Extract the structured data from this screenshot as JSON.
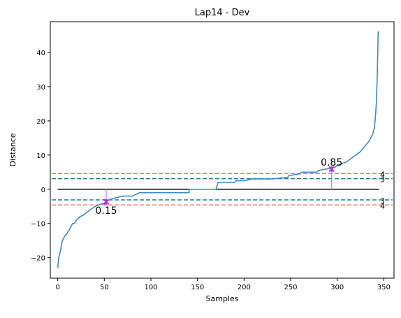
{
  "chart_data": {
    "type": "line",
    "title": "Lap14 - Dev",
    "xlabel": "Samples",
    "ylabel": "Distance",
    "xlim": [
      -8,
      361
    ],
    "ylim": [
      -26,
      49
    ],
    "xticks": [
      0,
      50,
      100,
      150,
      200,
      250,
      300,
      350
    ],
    "yticks": [
      -20,
      -10,
      0,
      10,
      20,
      30,
      40
    ],
    "grid": false,
    "legend": "none",
    "series": [
      {
        "color": "#3b8bc2",
        "points": [
          [
            0,
            -23
          ],
          [
            1,
            -20
          ],
          [
            2,
            -19
          ],
          [
            3,
            -18
          ],
          [
            4,
            -16
          ],
          [
            5,
            -15
          ],
          [
            6,
            -14.5
          ],
          [
            7,
            -14
          ],
          [
            8,
            -13.5
          ],
          [
            10,
            -13
          ],
          [
            12,
            -12
          ],
          [
            14,
            -11
          ],
          [
            16,
            -10
          ],
          [
            18,
            -10
          ],
          [
            20,
            -9
          ],
          [
            22,
            -8.5
          ],
          [
            24,
            -8
          ],
          [
            28,
            -7.5
          ],
          [
            30,
            -7
          ],
          [
            35,
            -6
          ],
          [
            40,
            -5
          ],
          [
            45,
            -4.5
          ],
          [
            50,
            -4
          ],
          [
            56,
            -3
          ],
          [
            62,
            -2.5
          ],
          [
            70,
            -2
          ],
          [
            80,
            -2
          ],
          [
            88,
            -1
          ],
          [
            100,
            -1
          ],
          [
            120,
            -1
          ],
          [
            141,
            -1
          ],
          [
            141,
            0
          ],
          [
            170,
            0
          ],
          [
            171,
            1
          ],
          [
            172,
            2
          ],
          [
            190,
            2
          ],
          [
            191,
            2.5
          ],
          [
            200,
            2.5
          ],
          [
            209,
            3
          ],
          [
            230,
            3
          ],
          [
            247,
            3.5
          ],
          [
            248,
            4
          ],
          [
            260,
            4.5
          ],
          [
            262,
            5
          ],
          [
            278,
            5
          ],
          [
            280,
            5.5
          ],
          [
            290,
            6
          ],
          [
            298,
            6.5
          ],
          [
            300,
            7
          ],
          [
            305,
            7.5
          ],
          [
            310,
            8
          ],
          [
            315,
            9
          ],
          [
            320,
            10
          ],
          [
            325,
            11
          ],
          [
            328,
            12
          ],
          [
            331,
            13
          ],
          [
            334,
            14
          ],
          [
            336,
            15
          ],
          [
            338,
            16
          ],
          [
            339,
            17
          ],
          [
            340,
            18
          ],
          [
            341,
            21
          ],
          [
            342,
            25
          ],
          [
            343,
            33
          ],
          [
            344,
            46
          ],
          [
            345,
            46
          ]
        ]
      }
    ],
    "zero_line": {
      "y": 0,
      "x_range": [
        0,
        345
      ],
      "color": "#000000"
    },
    "reference_lines": [
      {
        "y": 4.6,
        "label": "4",
        "color": "#f07a66"
      },
      {
        "y": 3.1,
        "label": "3",
        "color": "#247a94"
      },
      {
        "y": -3.1,
        "label": "3",
        "color": "#247a94"
      },
      {
        "y": -4.6,
        "label": "4",
        "color": "#f07a66"
      }
    ],
    "annotations": [
      {
        "x": 52,
        "y": -3.7,
        "text": "0.15",
        "color": "#b52fd4",
        "placement": "below"
      },
      {
        "x": 294,
        "y": 5.9,
        "text": "0.85",
        "color": "#b52fd4",
        "placement": "above"
      }
    ]
  }
}
